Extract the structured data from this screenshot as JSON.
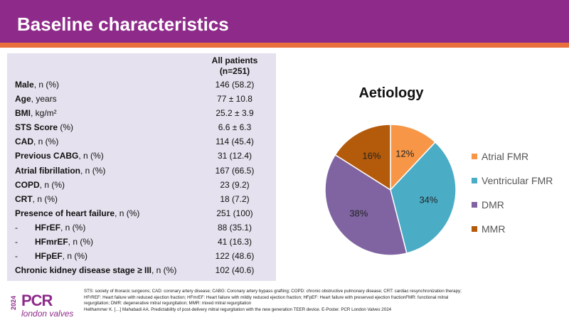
{
  "header": {
    "title": "Baseline characteristics"
  },
  "table": {
    "column_header_line1": "All patients",
    "column_header_line2": "(n=251)",
    "rows": [
      {
        "bold": "Male",
        "rest": ", n (%)",
        "value": "146 (58.2)"
      },
      {
        "bold": "Age",
        "rest": ", years",
        "value": "77 ± 10.8"
      },
      {
        "bold": "BMI",
        "rest": ", kg/m²",
        "value": "25.2 ± 3.9"
      },
      {
        "bold": "STS Score",
        "rest": " (%)",
        "value": "6.6 ± 6.3"
      },
      {
        "bold": "CAD",
        "rest": ", n (%)",
        "value": "114 (45.4)"
      },
      {
        "bold": "Previous CABG",
        "rest": ", n (%)",
        "value": "31 (12.4)"
      },
      {
        "bold": "Atrial fibrillation",
        "rest": ", n (%)",
        "value": "167 (66.5)"
      },
      {
        "bold": "COPD",
        "rest": ", n (%)",
        "value": "23 (9.2)"
      },
      {
        "bold": "CRT",
        "rest": ", n (%)",
        "value": "18 (7.2)"
      },
      {
        "bold": "Presence of heart failure",
        "rest": ", n (%)",
        "value": "251 (100)"
      },
      {
        "dash": "-",
        "bold": "HFrEF",
        "rest": ", n (%)",
        "value": "88 (35.1)"
      },
      {
        "dash": "-",
        "bold": "HFmrEF",
        "rest": ", n (%)",
        "value": "41 (16.3)"
      },
      {
        "dash": "-",
        "bold": "HFpEF",
        "rest": ", n (%)",
        "value": "122 (48.6)"
      },
      {
        "bold": "Chronic kidney disease stage ≥ III",
        "rest": ", n (%)",
        "value": "102 (40.6)"
      }
    ]
  },
  "chart_data": {
    "type": "pie",
    "title": "Aetiology",
    "categories": [
      "Atrial FMR",
      "Ventricular FMR",
      "DMR",
      "MMR"
    ],
    "values": [
      12,
      34,
      38,
      16
    ],
    "labels": [
      "12%",
      "34%",
      "38%",
      "16%"
    ],
    "colors": [
      "#f79646",
      "#4bacc6",
      "#8064a2",
      "#b45b0b"
    ],
    "legend_position": "right"
  },
  "logo": {
    "year": "2024",
    "brand": "PCR",
    "sub": "london valves"
  },
  "footnote": {
    "line1": "STS: society of thoracic surgeons; CAD: coronary artery disease; CABG: Coronary artery bypass grafting; COPD: chronic obstructive pulmonary disease; CRT: cardiac resynchronization therapy;",
    "line2": "HFrREF: Heart failure with reduced ejection fraction; HFmrEF: Heart failure with mildly reduced ejection fraction; HFpEF: Heart failure with preserved ejection fractionFMR: functional mitral",
    "line3": "regurgitation; DMR: degenerative mitral regurgitation; MMR: mixed mitral regurgitation",
    "line4": "Hellhammer K. […] Mahabadi AA. Predictability of post-delivery mitral regurgitation with the new generation TEER device. E-Poster. PCR London Valves 2024"
  }
}
